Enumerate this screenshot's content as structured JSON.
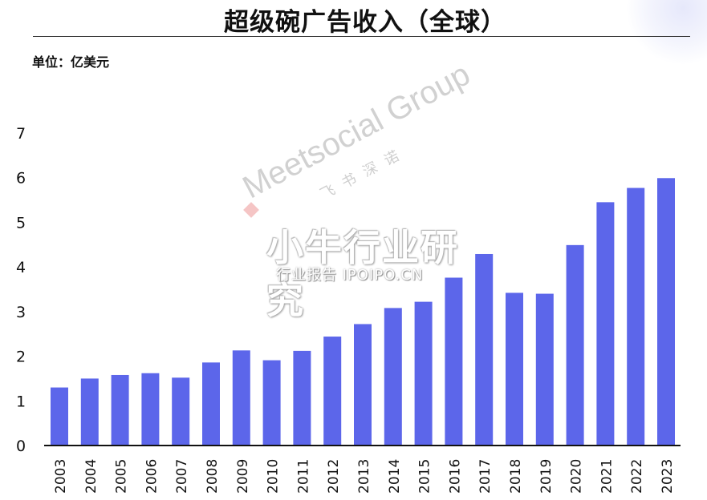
{
  "title": "超级碗广告收入（全球）",
  "unit_label": "单位：亿美元",
  "watermark": {
    "brand": "Meetsocial Group",
    "brand_sub": "飞书深诺",
    "cn": "小牛行业研究",
    "url": "行业报告 IPOIPO.CN"
  },
  "colors": {
    "bar": "#5c66ea",
    "axis": "#111111",
    "text": "#111111"
  },
  "chart_data": {
    "type": "bar",
    "title": "超级碗广告收入（全球）",
    "xlabel": "",
    "ylabel": "单位：亿美元",
    "categories": [
      "2003",
      "2004",
      "2005",
      "2006",
      "2007",
      "2008",
      "2009",
      "2010",
      "2011",
      "2012",
      "2013",
      "2014",
      "2015",
      "2016",
      "2017",
      "2018",
      "2019",
      "2020",
      "2021",
      "2022",
      "2023"
    ],
    "values": [
      1.3,
      1.5,
      1.58,
      1.62,
      1.52,
      1.86,
      2.13,
      1.91,
      2.12,
      2.44,
      2.72,
      3.08,
      3.22,
      3.76,
      4.29,
      3.42,
      3.4,
      4.49,
      5.45,
      5.77,
      5.99
    ],
    "yticks": [
      0,
      1,
      2,
      3,
      4,
      5,
      6,
      7
    ],
    "ylim": [
      0,
      7
    ],
    "grid": false,
    "legend": "none"
  }
}
